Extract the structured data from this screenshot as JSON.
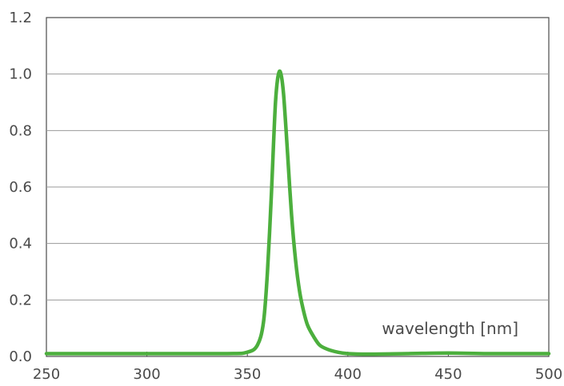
{
  "chart_data": {
    "type": "line",
    "title": "",
    "xlabel": "wavelength [nm]",
    "ylabel": "",
    "xlim": [
      250,
      500
    ],
    "ylim": [
      0.0,
      1.2
    ],
    "x_ticks": [
      "250",
      "300",
      "350",
      "400",
      "450",
      "500"
    ],
    "y_ticks": [
      "0.0",
      "0.2",
      "0.4",
      "0.6",
      "0.8",
      "1.0",
      "1.2"
    ],
    "grid": "horizontal",
    "series": [
      {
        "color": "#4caf3d",
        "x": [
          250,
          300,
          340,
          350,
          355,
          358,
          360,
          362,
          363,
          364,
          365,
          366,
          367,
          368,
          369,
          370,
          372,
          374,
          376,
          378,
          380,
          383,
          386,
          390,
          395,
          400,
          410,
          430,
          450,
          470,
          500
        ],
        "y": [
          0.01,
          0.01,
          0.01,
          0.015,
          0.04,
          0.12,
          0.3,
          0.58,
          0.75,
          0.9,
          0.98,
          1.01,
          0.99,
          0.93,
          0.83,
          0.72,
          0.5,
          0.34,
          0.23,
          0.16,
          0.11,
          0.07,
          0.04,
          0.025,
          0.015,
          0.01,
          0.008,
          0.01,
          0.012,
          0.01,
          0.01
        ]
      }
    ]
  }
}
